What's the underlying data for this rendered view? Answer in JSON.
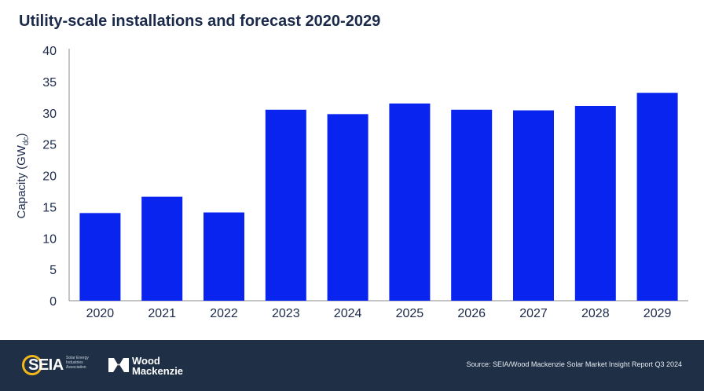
{
  "chart_data": {
    "type": "bar",
    "title": "Utility-scale installations and forecast 2020-2029",
    "ylabel_main": "Capacity (GW",
    "ylabel_sub": "dc",
    "ylabel_close": ")",
    "xlabel": "",
    "categories": [
      "2020",
      "2021",
      "2022",
      "2023",
      "2024",
      "2025",
      "2026",
      "2027",
      "2028",
      "2029"
    ],
    "values": [
      14.0,
      16.6,
      14.1,
      30.5,
      29.8,
      31.5,
      30.5,
      30.4,
      31.1,
      33.2
    ],
    "ylim": [
      0,
      40
    ],
    "yticks": [
      0,
      5,
      10,
      15,
      20,
      25,
      30,
      35,
      40
    ],
    "grid": false,
    "bar_color": "#0a24f0"
  },
  "footer": {
    "seia_logo_text": "SEIA",
    "seia_tagline": "Solar Energy Industries Association",
    "wm_line1": "Wood",
    "wm_line2": "Mackenzie",
    "source": "Source: SEIA/Wood Mackenzie Solar Market Insight Report Q3 2024"
  }
}
